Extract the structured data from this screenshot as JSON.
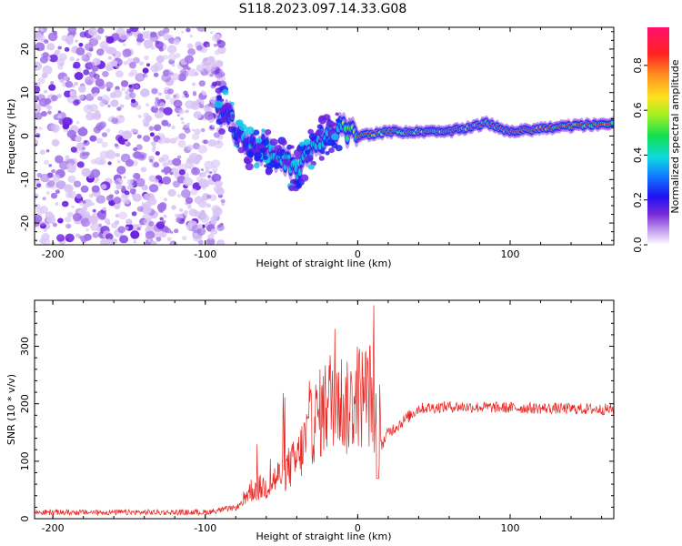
{
  "title": "S118.2023.097.14.33.G08",
  "colors": {
    "snr_line": "#e8231f",
    "colormap": [
      "#ffffff",
      "#c9a7f0",
      "#7a2bd8",
      "#3a10e8",
      "#1040ff",
      "#10d0e0",
      "#20e060",
      "#c8f030",
      "#ffe020",
      "#ff9020",
      "#ff2020",
      "#ff1070"
    ]
  },
  "chart_data": [
    {
      "type": "heatmap",
      "name": "spectrogram",
      "xlabel": "Height of straight line (km)",
      "ylabel": "Frequency (Hz)",
      "xlim": [
        -212,
        168
      ],
      "ylim": [
        -25,
        25
      ],
      "x_ticks": [
        -200,
        -100,
        0,
        100
      ],
      "y_ticks": [
        -20,
        -10,
        0,
        10,
        20
      ],
      "noise_region": [
        -212,
        -88
      ],
      "ridge": [
        {
          "x": -88,
          "y": 6
        },
        {
          "x": -80,
          "y": 2
        },
        {
          "x": -72,
          "y": -2
        },
        {
          "x": -62,
          "y": -3
        },
        {
          "x": -50,
          "y": -6
        },
        {
          "x": -40,
          "y": -8
        },
        {
          "x": -35,
          "y": -6
        },
        {
          "x": -30,
          "y": -2
        },
        {
          "x": -22,
          "y": 0
        },
        {
          "x": -14,
          "y": 2
        },
        {
          "x": 0,
          "y": 0
        },
        {
          "x": 20,
          "y": 1
        },
        {
          "x": 60,
          "y": 1
        },
        {
          "x": 85,
          "y": 3
        },
        {
          "x": 100,
          "y": 1
        },
        {
          "x": 130,
          "y": 2
        },
        {
          "x": 168,
          "y": 3
        }
      ],
      "colorbar": {
        "label": "Normalized spectral amplitude",
        "ticks": [
          0.0,
          0.2,
          0.4,
          0.6,
          0.8
        ],
        "tick_labels": [
          "0.0",
          "0.2",
          "0.4",
          "0.6",
          "0.8"
        ],
        "range": [
          0.0,
          0.97
        ]
      }
    },
    {
      "type": "line",
      "name": "snr",
      "xlabel": "Height of straight line (km)",
      "ylabel": "SNR (10 * v/v)",
      "xlim": [
        -212,
        168
      ],
      "ylim": [
        0,
        380
      ],
      "x_ticks": [
        -200,
        -100,
        0,
        100
      ],
      "y_ticks": [
        0,
        100,
        200,
        300
      ],
      "envelope": [
        {
          "x": -212,
          "y": 12
        },
        {
          "x": -100,
          "y": 12
        },
        {
          "x": -80,
          "y": 20
        },
        {
          "x": -70,
          "y": 40
        },
        {
          "x": -60,
          "y": 45
        },
        {
          "x": -40,
          "y": 80
        },
        {
          "x": -30,
          "y": 130
        },
        {
          "x": -20,
          "y": 160
        },
        {
          "x": -14,
          "y": 180
        },
        {
          "x": -8,
          "y": 150
        },
        {
          "x": 0,
          "y": 170
        },
        {
          "x": 10,
          "y": 175
        },
        {
          "x": 14,
          "y": 120
        },
        {
          "x": 20,
          "y": 150
        },
        {
          "x": 30,
          "y": 170
        },
        {
          "x": 40,
          "y": 192
        },
        {
          "x": 60,
          "y": 195
        },
        {
          "x": 100,
          "y": 193
        },
        {
          "x": 168,
          "y": 190
        }
      ]
    }
  ]
}
